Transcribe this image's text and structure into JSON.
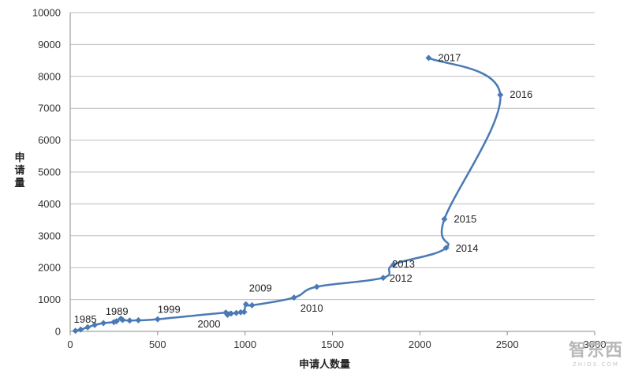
{
  "chart_data": {
    "type": "line",
    "title": "",
    "xlabel": "申请人数量",
    "ylabel": "申请量",
    "xlim": [
      0,
      3000
    ],
    "ylim": [
      0,
      10000
    ],
    "xticks": [
      "0",
      "500",
      "1000",
      "1500",
      "2000",
      "2500",
      "3000"
    ],
    "yticks": [
      "0",
      "1000",
      "2000",
      "3000",
      "4000",
      "5000",
      "6000",
      "7000",
      "8000",
      "9000",
      "10000"
    ],
    "grid": true,
    "line_color": "#4a7ab5",
    "points": [
      {
        "x": 30,
        "y": 20,
        "label": "1985"
      },
      {
        "x": 60,
        "y": 60,
        "label": ""
      },
      {
        "x": 100,
        "y": 130,
        "label": ""
      },
      {
        "x": 140,
        "y": 200,
        "label": ""
      },
      {
        "x": 190,
        "y": 260,
        "label": ""
      },
      {
        "x": 250,
        "y": 290,
        "label": ""
      },
      {
        "x": 265,
        "y": 320,
        "label": "1989"
      },
      {
        "x": 290,
        "y": 400,
        "label": ""
      },
      {
        "x": 300,
        "y": 360,
        "label": ""
      },
      {
        "x": 340,
        "y": 340,
        "label": ""
      },
      {
        "x": 390,
        "y": 350,
        "label": ""
      },
      {
        "x": 500,
        "y": 380,
        "label": "1999"
      },
      {
        "x": 890,
        "y": 590,
        "label": ""
      },
      {
        "x": 900,
        "y": 520,
        "label": "2000"
      },
      {
        "x": 920,
        "y": 560,
        "label": ""
      },
      {
        "x": 950,
        "y": 580,
        "label": ""
      },
      {
        "x": 975,
        "y": 600,
        "label": ""
      },
      {
        "x": 995,
        "y": 610,
        "label": ""
      },
      {
        "x": 1005,
        "y": 850,
        "label": "2009"
      },
      {
        "x": 1040,
        "y": 820,
        "label": ""
      },
      {
        "x": 1280,
        "y": 1060,
        "label": "2010"
      },
      {
        "x": 1410,
        "y": 1400,
        "label": ""
      },
      {
        "x": 1790,
        "y": 1680,
        "label": "2012"
      },
      {
        "x": 1850,
        "y": 2100,
        "label": "2013"
      },
      {
        "x": 2150,
        "y": 2620,
        "label": "2014"
      },
      {
        "x": 2140,
        "y": 3520,
        "label": "2015"
      },
      {
        "x": 2460,
        "y": 7420,
        "label": "2016"
      },
      {
        "x": 2050,
        "y": 8580,
        "label": "2017"
      }
    ]
  },
  "watermark": {
    "text": "智东西",
    "subtext": "ZHIDX.COM"
  }
}
